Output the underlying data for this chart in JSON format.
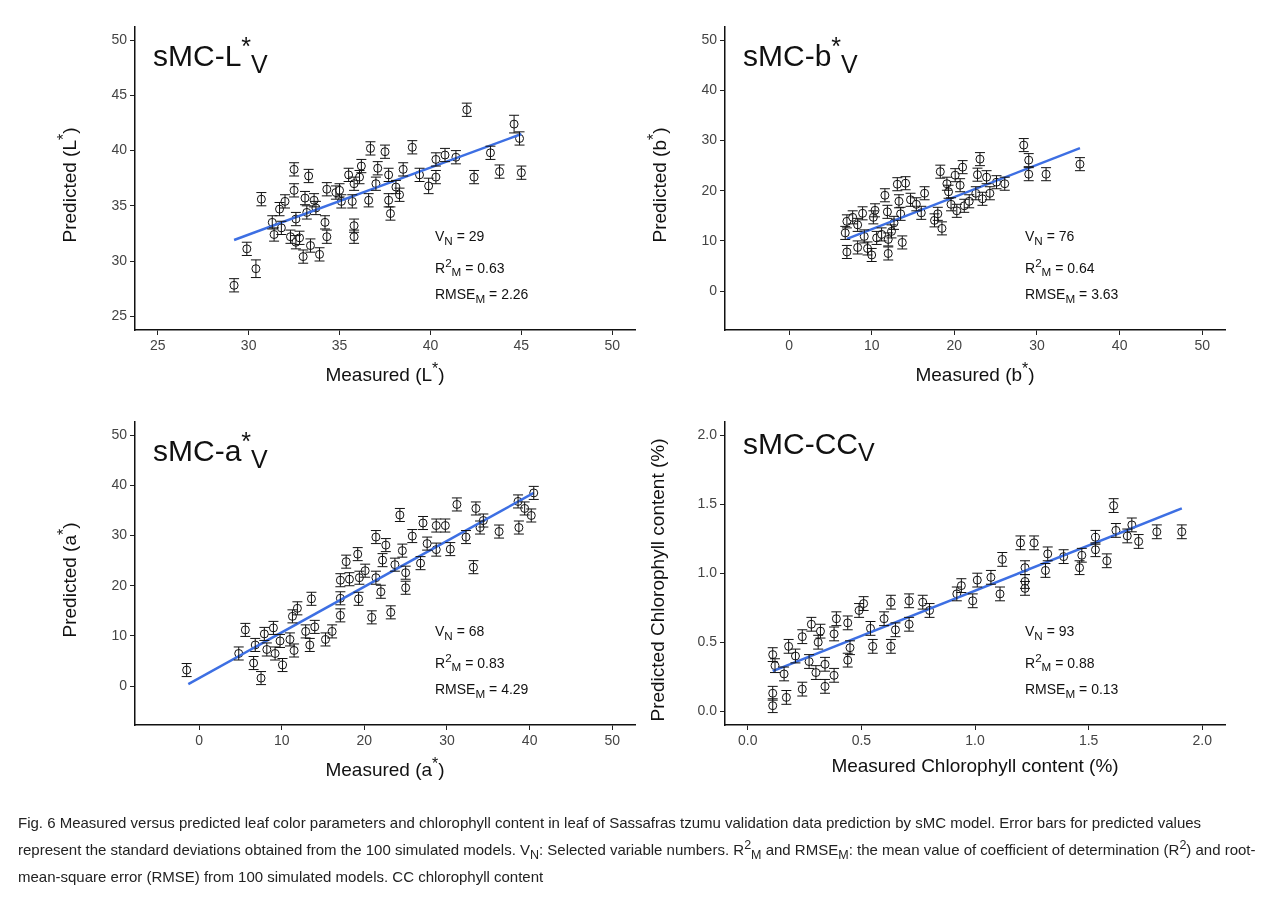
{
  "chart_data": [
    {
      "type": "scatter",
      "title": "sMC-L$^{*}$$_{V}$",
      "xlabel": "Measured (L$^{*}$)",
      "ylabel": "Predicted (L$^{*}$)",
      "xlim": [
        23.75,
        51.25
      ],
      "ylim": [
        23.75,
        51.25
      ],
      "xticks": [
        25,
        30,
        35,
        40,
        45,
        50
      ],
      "yticks": [
        25,
        30,
        35,
        40,
        45,
        50
      ],
      "annotations": [
        "V$_{N}$ = 29",
        "R$^{2}$$_{M}$ = 0.63",
        "RMSE$_{M}$ = 2.26"
      ],
      "series": [
        {
          "type": "scatter",
          "marker": "circle",
          "color": "#ffffff",
          "x": [
            29.2,
            29.9,
            30.4,
            30.7,
            31.3,
            31.4,
            31.7,
            31.8,
            32.0,
            32.3,
            32.5,
            32.5,
            32.6,
            32.6,
            32.8,
            33.0,
            33.1,
            33.2,
            33.3,
            33.4,
            33.6,
            33.7,
            33.9,
            34.2,
            34.3,
            34.3,
            34.8,
            35.0,
            35.1,
            35.5,
            35.7,
            35.8,
            35.8,
            35.8,
            36.2,
            36.1,
            36.6,
            36.7,
            37.0,
            37.1,
            37.5,
            37.7,
            37.7,
            37.8,
            38.1,
            38.3,
            38.5,
            39.0,
            39.4,
            39.9,
            40.3,
            40.3,
            40.8,
            41.4,
            42.0,
            42.4,
            43.3,
            43.8,
            44.6,
            44.9,
            45.0
          ],
          "values": [
            27.8,
            31.1,
            29.3,
            35.6,
            33.5,
            32.4,
            34.7,
            33.0,
            35.4,
            32.2,
            36.4,
            38.3,
            33.8,
            31.7,
            32.1,
            30.4,
            35.7,
            34.4,
            37.7,
            31.4,
            35.5,
            34.8,
            30.6,
            33.5,
            36.5,
            32.2,
            36.2,
            36.4,
            35.4,
            37.8,
            35.4,
            33.2,
            32.2,
            37.0,
            38.6,
            37.6,
            35.5,
            40.2,
            37.0,
            38.4,
            39.9,
            37.8,
            35.5,
            34.3,
            36.7,
            36.0,
            38.3,
            40.3,
            37.8,
            36.8,
            37.6,
            39.2,
            39.6,
            39.4,
            43.7,
            37.6,
            39.8,
            38.1,
            42.4,
            41.1,
            38.0
          ],
          "errors": [
            0.6,
            0.6,
            0.8,
            0.6,
            0.6,
            0.6,
            0.6,
            0.6,
            0.6,
            0.6,
            0.6,
            0.6,
            0.6,
            0.6,
            0.6,
            0.6,
            0.6,
            0.6,
            0.6,
            0.6,
            0.6,
            0.6,
            0.6,
            0.6,
            0.6,
            0.6,
            0.6,
            0.6,
            0.6,
            0.6,
            0.6,
            0.6,
            0.6,
            0.6,
            0.6,
            0.6,
            0.6,
            0.6,
            0.6,
            0.6,
            0.6,
            0.6,
            0.6,
            0.6,
            0.6,
            0.6,
            0.6,
            0.6,
            0.6,
            0.7,
            0.6,
            0.6,
            0.6,
            0.6,
            0.6,
            0.6,
            0.6,
            0.6,
            0.8,
            0.6,
            0.6
          ]
        },
        {
          "type": "line",
          "color": "#3d6fe3",
          "x": [
            29.2,
            45.0
          ],
          "values": [
            31.9,
            41.5
          ]
        }
      ]
    },
    {
      "type": "scatter",
      "title": "sMC-b$^{*}$$_{V}$",
      "xlabel": "Measured (b$^{*}$)",
      "ylabel": "Predicted (b$^{*}$)",
      "xlim": [
        -7.75,
        52.75
      ],
      "ylim": [
        -7.75,
        52.75
      ],
      "xticks": [
        0,
        10,
        20,
        30,
        40,
        50
      ],
      "yticks": [
        0,
        10,
        20,
        30,
        40,
        50
      ],
      "annotations": [
        "V$_{N}$ = 76",
        "R$^{2}$$_{M}$ = 0.64",
        "RMSE$_{M}$ = 3.63"
      ],
      "series": [
        {
          "type": "scatter",
          "marker": "circle",
          "color": "#ffffff",
          "x": [
            7.0,
            6.8,
            7.0,
            7.7,
            8.3,
            8.3,
            8.9,
            9.1,
            9.5,
            10.0,
            10.2,
            10.4,
            10.6,
            11.2,
            11.6,
            11.9,
            12.0,
            12.0,
            12.4,
            12.7,
            13.1,
            13.3,
            13.5,
            13.7,
            14.1,
            14.7,
            15.4,
            16.0,
            16.4,
            17.6,
            18.0,
            18.5,
            18.3,
            19.1,
            19.3,
            19.6,
            20.1,
            20.3,
            20.7,
            21.2,
            21.0,
            21.8,
            22.6,
            22.8,
            23.1,
            23.4,
            23.9,
            24.3,
            25.1,
            26.1,
            28.4,
            29.0,
            29.0,
            31.1,
            35.2
          ],
          "values": [
            7.8,
            11.6,
            13.9,
            14.7,
            8.7,
            13.2,
            15.5,
            10.9,
            8.5,
            7.2,
            14.7,
            16.1,
            10.6,
            11.3,
            19.1,
            15.8,
            7.5,
            10.3,
            11.9,
            13.6,
            21.3,
            17.9,
            15.4,
            9.7,
            21.5,
            18.2,
            17.3,
            15.6,
            19.5,
            14.1,
            15.4,
            12.5,
            23.8,
            21.4,
            19.8,
            17.3,
            23.1,
            16.0,
            21.1,
            17.0,
            24.7,
            17.9,
            19.5,
            23.2,
            26.3,
            18.4,
            22.7,
            19.5,
            21.7,
            21.4,
            29.1,
            26.1,
            23.3,
            23.3,
            25.3
          ],
          "errors": [
            1.3,
            1.3,
            1.3,
            1.3,
            1.3,
            1.3,
            1.3,
            1.3,
            1.3,
            1.3,
            1.3,
            1.3,
            1.3,
            1.3,
            1.3,
            1.3,
            1.3,
            1.3,
            1.3,
            1.3,
            1.3,
            1.3,
            1.3,
            1.3,
            1.3,
            1.3,
            1.3,
            1.3,
            1.3,
            1.3,
            1.3,
            1.3,
            1.3,
            1.3,
            1.3,
            1.3,
            1.3,
            1.3,
            1.3,
            1.3,
            1.3,
            1.3,
            1.3,
            1.3,
            1.3,
            1.3,
            1.3,
            1.3,
            1.3,
            1.3,
            1.3,
            1.3,
            1.3,
            1.3,
            1.3
          ]
        },
        {
          "type": "line",
          "color": "#3d6fe3",
          "x": [
            7.0,
            35.2
          ],
          "values": [
            10.4,
            28.5
          ]
        }
      ]
    },
    {
      "type": "scatter",
      "title": "sMC-a$^{*}$$_{V}$",
      "xlabel": "Measured (a$^{*}$)",
      "ylabel": "Predicted (a$^{*}$)",
      "xlim": [
        -7.75,
        52.75
      ],
      "ylim": [
        -7.75,
        52.75
      ],
      "xticks": [
        0,
        10,
        20,
        30,
        40,
        50
      ],
      "yticks": [
        0,
        10,
        20,
        30,
        40,
        50
      ],
      "annotations": [
        "V$_{N}$ = 68",
        "R$^{2}$$_{M}$ = 0.83",
        "RMSE$_{M}$ = 4.29"
      ],
      "series": [
        {
          "type": "scatter",
          "marker": "circle",
          "color": "#ffffff",
          "x": [
            -1.5,
            4.8,
            5.6,
            6.8,
            6.6,
            7.5,
            7.9,
            8.2,
            9.0,
            9.2,
            9.8,
            10.1,
            11.0,
            11.3,
            11.5,
            11.9,
            12.9,
            13.4,
            13.6,
            14.0,
            15.3,
            16.1,
            17.1,
            17.1,
            17.1,
            17.8,
            18.2,
            19.2,
            19.3,
            19.4,
            20.1,
            20.9,
            21.4,
            21.4,
            22.0,
            22.2,
            22.6,
            23.2,
            23.7,
            24.3,
            24.6,
            25.0,
            25.0,
            25.8,
            26.8,
            27.1,
            27.6,
            28.7,
            28.7,
            29.8,
            30.4,
            31.2,
            32.3,
            33.2,
            33.5,
            34.0,
            34.4,
            36.3,
            38.6,
            38.7,
            39.4,
            40.2,
            40.5
          ],
          "values": [
            3.2,
            6.5,
            11.2,
            8.2,
            4.6,
            1.6,
            10.4,
            7.3,
            11.6,
            6.5,
            9.0,
            4.2,
            9.3,
            13.9,
            7.1,
            15.5,
            10.9,
            8.2,
            17.4,
            11.8,
            9.3,
            10.9,
            14.1,
            17.5,
            21.1,
            24.8,
            21.3,
            26.3,
            17.4,
            21.6,
            23.0,
            13.7,
            21.6,
            29.7,
            18.8,
            25.1,
            28.1,
            14.7,
            24.2,
            34.1,
            27.0,
            19.6,
            22.6,
            29.9,
            24.5,
            32.5,
            28.4,
            32.0,
            27.2,
            32.0,
            27.3,
            36.2,
            29.7,
            23.7,
            35.4,
            31.6,
            33.0,
            30.8,
            36.8,
            31.6,
            35.4,
            34.0,
            38.5
          ],
          "errors": [
            1.3,
            1.3,
            1.3,
            1.3,
            1.3,
            1.3,
            1.3,
            1.3,
            1.3,
            1.3,
            1.3,
            1.3,
            1.3,
            1.3,
            1.3,
            1.3,
            1.3,
            1.3,
            1.3,
            1.3,
            1.3,
            1.3,
            1.3,
            1.3,
            1.3,
            1.3,
            1.3,
            1.3,
            1.3,
            1.3,
            1.3,
            1.3,
            1.3,
            1.3,
            1.3,
            1.3,
            1.3,
            1.3,
            1.3,
            1.3,
            1.3,
            1.3,
            1.3,
            1.3,
            1.3,
            1.3,
            1.3,
            1.3,
            1.3,
            1.3,
            1.3,
            1.3,
            1.3,
            1.3,
            1.3,
            1.3,
            1.3,
            1.3,
            1.3,
            1.3,
            1.3,
            1.3,
            1.3
          ]
        },
        {
          "type": "line",
          "color": "#3d6fe3",
          "x": [
            -1.3,
            40.5
          ],
          "values": [
            0.4,
            38.5
          ]
        }
      ]
    },
    {
      "type": "scatter",
      "title": "sMC-CC$_{V}$",
      "xlabel": "Measured Chlorophyll content (%)",
      "ylabel": "Predicted Chlorophyll content (%)",
      "xlim": [
        -0.1,
        2.1
      ],
      "ylim": [
        -0.1,
        2.1
      ],
      "xticks": [
        {
          "value": 0,
          "label": "0.0"
        },
        {
          "value": 0.5,
          "label": "0.5"
        },
        {
          "value": 1,
          "label": "1.0"
        },
        {
          "value": 1.5,
          "label": "1.5"
        },
        {
          "value": 2,
          "label": "2.0"
        }
      ],
      "yticks": [
        {
          "value": 0,
          "label": "0.0"
        },
        {
          "value": 0.5,
          "label": "0.5"
        },
        {
          "value": 1,
          "label": "1.0"
        },
        {
          "value": 1.5,
          "label": "1.5"
        },
        {
          "value": 2,
          "label": "2.0"
        }
      ],
      "annotations": [
        "V$_{N}$ = 93",
        "R$^{2}$$_{M}$ = 0.88",
        "RMSE$_{M}$ = 0.13"
      ],
      "series": [
        {
          "type": "scatter",
          "marker": "circle",
          "color": "#ffffff",
          "x": [
            1.61,
            1.91,
            1.8,
            1.72,
            1.69,
            1.67,
            1.62,
            1.53,
            1.53,
            1.58,
            1.46,
            1.47,
            1.39,
            1.32,
            1.26,
            1.2,
            1.12,
            1.31,
            1.22,
            1.22,
            1.22,
            1.07,
            1.01,
            0.94,
            0.99,
            1.11,
            0.92,
            0.8,
            0.77,
            0.71,
            0.63,
            0.51,
            0.49,
            0.71,
            0.65,
            0.6,
            0.54,
            0.63,
            0.55,
            0.44,
            0.39,
            0.32,
            0.28,
            0.38,
            0.31,
            0.24,
            0.18,
            0.45,
            0.44,
            0.34,
            0.27,
            0.21,
            0.11,
            0.12,
            0.16,
            0.3,
            0.38,
            0.11,
            0.11,
            0.17,
            0.24,
            0.34
          ],
          "values": [
            1.49,
            1.3,
            1.3,
            1.23,
            1.35,
            1.27,
            1.31,
            1.26,
            1.17,
            1.09,
            1.04,
            1.13,
            1.12,
            1.14,
            1.22,
            1.22,
            1.1,
            1.02,
            1.04,
            0.94,
            0.89,
            0.97,
            0.95,
            0.91,
            0.8,
            0.85,
            0.85,
            0.73,
            0.79,
            0.8,
            0.79,
            0.78,
            0.73,
            0.63,
            0.59,
            0.67,
            0.6,
            0.47,
            0.47,
            0.64,
            0.67,
            0.58,
            0.63,
            0.56,
            0.5,
            0.54,
            0.47,
            0.46,
            0.37,
            0.34,
            0.36,
            0.4,
            0.41,
            0.33,
            0.27,
            0.28,
            0.26,
            0.13,
            0.04,
            0.1,
            0.16,
            0.18
          ],
          "errors": [
            0.05,
            0.05,
            0.05,
            0.05,
            0.05,
            0.05,
            0.05,
            0.05,
            0.05,
            0.05,
            0.05,
            0.05,
            0.05,
            0.05,
            0.05,
            0.05,
            0.05,
            0.05,
            0.05,
            0.05,
            0.05,
            0.05,
            0.05,
            0.05,
            0.05,
            0.05,
            0.05,
            0.05,
            0.05,
            0.05,
            0.05,
            0.05,
            0.05,
            0.05,
            0.05,
            0.05,
            0.05,
            0.05,
            0.05,
            0.05,
            0.05,
            0.05,
            0.05,
            0.05,
            0.05,
            0.05,
            0.05,
            0.05,
            0.05,
            0.05,
            0.05,
            0.05,
            0.05,
            0.05,
            0.05,
            0.05,
            0.05,
            0.05,
            0.05,
            0.05,
            0.05,
            0.05
          ]
        },
        {
          "type": "line",
          "color": "#3d6fe3",
          "x": [
            0.11,
            1.91
          ],
          "values": [
            0.29,
            1.47
          ]
        }
      ]
    },
    {
      "type": "other",
      "annotations": [
        "Fig. 6 Measured versus predicted leaf color parameters and chlorophyll content in leaf of Sassafras tzumu validation data prediction by sMC model. Error bars for predicted values represent the standard deviations obtained from the 100 simulated models. V$_{N}$: Selected variable numbers. R$^{2}$$_{M}$ and RMSE$_{M}$: the mean value of coefficient of determination (R$^{2}$) and root-mean-square error (RMSE) from 100 simulated models. CC chlorophyll content"
      ]
    }
  ]
}
